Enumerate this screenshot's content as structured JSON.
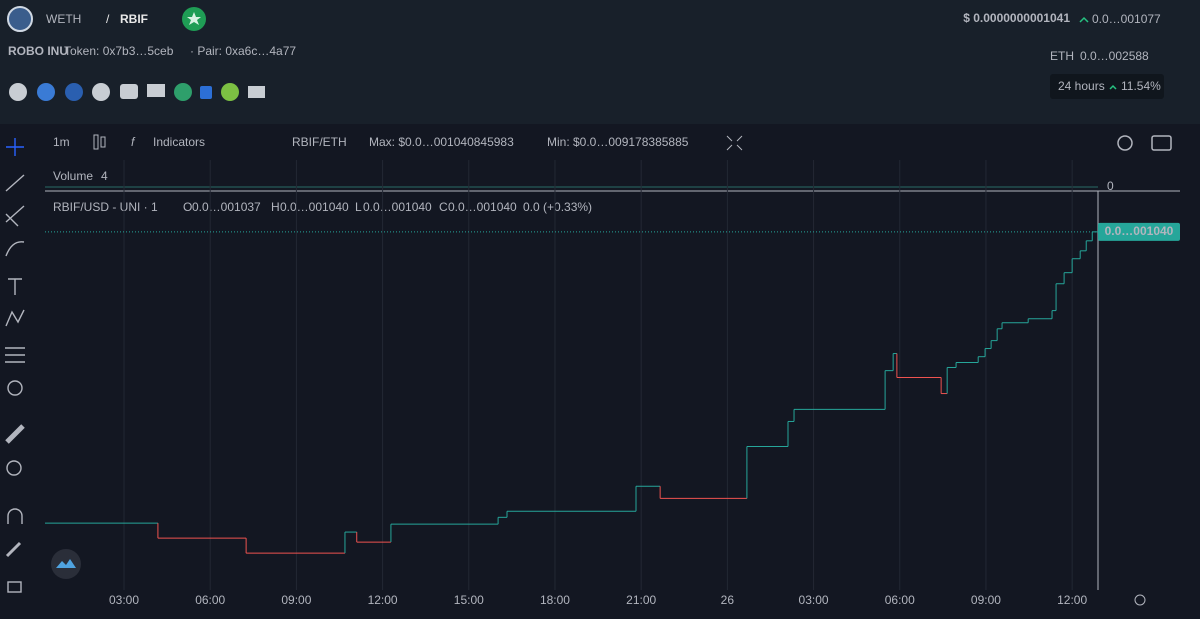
{
  "header": {
    "base": "WETH",
    "separator": "/",
    "symbol": "RBIF",
    "price": "$ 0.0000000001041",
    "price_change": "0.0…001077",
    "name": "ROBO INU",
    "token": "Token: 0x7b3…5ceb",
    "pair": "· Pair: 0xa6c…4a77",
    "eth_label": "ETH",
    "eth_price": "0.0…002588",
    "period": "24 hours",
    "period_change": "11.54%"
  },
  "toolbar": {
    "interval": "1m",
    "indicators": "Indicators",
    "pair": "RBIF/ETH",
    "max": "Max: $0.0…001040845983",
    "min": "Min: $0.0…009178385885"
  },
  "volume_pane": {
    "title": "Volume",
    "value": "4",
    "axis_label": "0"
  },
  "legend": {
    "title": "RBIF/USD - UNI · 1",
    "open_key": "O",
    "open": "0.0…001037",
    "high_key": "H",
    "high": "0.0…001040",
    "low_key": "L",
    "low": "0.0…001040",
    "close_key": "C",
    "close": "0.0…001040",
    "change": "0.0 (+0.33%)"
  },
  "chart_data": {
    "type": "step",
    "last_price_label": "0.0…001040",
    "series": [
      {
        "color": "#26a69a",
        "down_color": "#ef5350",
        "x": [
          0.25,
          4.18,
          7.25,
          10.69,
          11.1,
          12.29,
          16.02,
          16.33,
          20.82,
          21.66,
          24.68,
          26.11,
          26.32,
          29.49,
          29.77,
          29.9,
          31.44,
          31.65,
          31.96,
          32.73,
          32.97,
          33.18,
          33.39,
          33.56,
          34.47,
          35.3,
          35.44,
          35.72,
          36.0,
          36.28,
          36.49,
          36.7
        ],
        "values": [
          0.9294,
          0.9237,
          0.918,
          0.926,
          0.9222,
          0.929,
          0.9316,
          0.9339,
          0.9434,
          0.9388,
          0.9585,
          0.968,
          0.9726,
          0.9873,
          0.9938,
          0.9847,
          0.9786,
          0.9885,
          0.9904,
          0.9926,
          0.9957,
          0.9987,
          1.0032,
          1.0055,
          1.007,
          1.0101,
          1.0203,
          1.0245,
          1.0298,
          1.0328,
          1.0366,
          1.04
        ]
      }
    ],
    "xlim": [
      0.25,
      36.9
    ],
    "ylim": [
      0.904,
      1.054
    ],
    "xticks": [
      {
        "value": 3,
        "label": "03:00"
      },
      {
        "value": 6,
        "label": "06:00"
      },
      {
        "value": 9,
        "label": "09:00"
      },
      {
        "value": 12,
        "label": "12:00"
      },
      {
        "value": 15,
        "label": "15:00"
      },
      {
        "value": 18,
        "label": "18:00"
      },
      {
        "value": 21,
        "label": "21:00"
      },
      {
        "value": 24,
        "label": "26"
      },
      {
        "value": 27,
        "label": "03:00"
      },
      {
        "value": 30,
        "label": "06:00"
      },
      {
        "value": 33,
        "label": "09:00"
      },
      {
        "value": 36,
        "label": "12:00"
      }
    ],
    "grid": true
  }
}
